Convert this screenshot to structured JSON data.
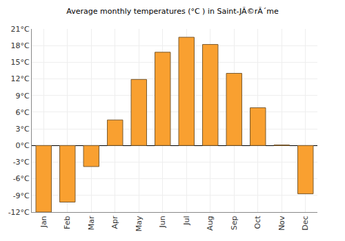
{
  "chart_data": {
    "type": "bar",
    "title": "Average monthly temperatures (°C ) in Saint-JÃ©rÃ´me",
    "categories": [
      "Jan",
      "Feb",
      "Mar",
      "Apr",
      "May",
      "Jun",
      "Jul",
      "Aug",
      "Sep",
      "Oct",
      "Nov",
      "Dec"
    ],
    "values": [
      -12,
      -10.2,
      -3.8,
      4.6,
      11.9,
      16.8,
      19.5,
      18.2,
      13.0,
      6.8,
      0.1,
      -8.7
    ],
    "color": "#f9a030",
    "ylim": [
      -12,
      21
    ],
    "yticks": [
      {
        "value": -12,
        "label": "-12°C"
      },
      {
        "value": -9,
        "label": "-9°C"
      },
      {
        "value": -6,
        "label": "-6°C"
      },
      {
        "value": -3,
        "label": "-3°C"
      },
      {
        "value": 0,
        "label": "0°C"
      },
      {
        "value": 3,
        "label": "3°C"
      },
      {
        "value": 6,
        "label": "6°C"
      },
      {
        "value": 9,
        "label": "9°C"
      },
      {
        "value": 12,
        "label": "12°C"
      },
      {
        "value": 15,
        "label": "15°C"
      },
      {
        "value": 18,
        "label": "18°C"
      },
      {
        "value": 21,
        "label": "21°C"
      }
    ],
    "grid": true
  }
}
